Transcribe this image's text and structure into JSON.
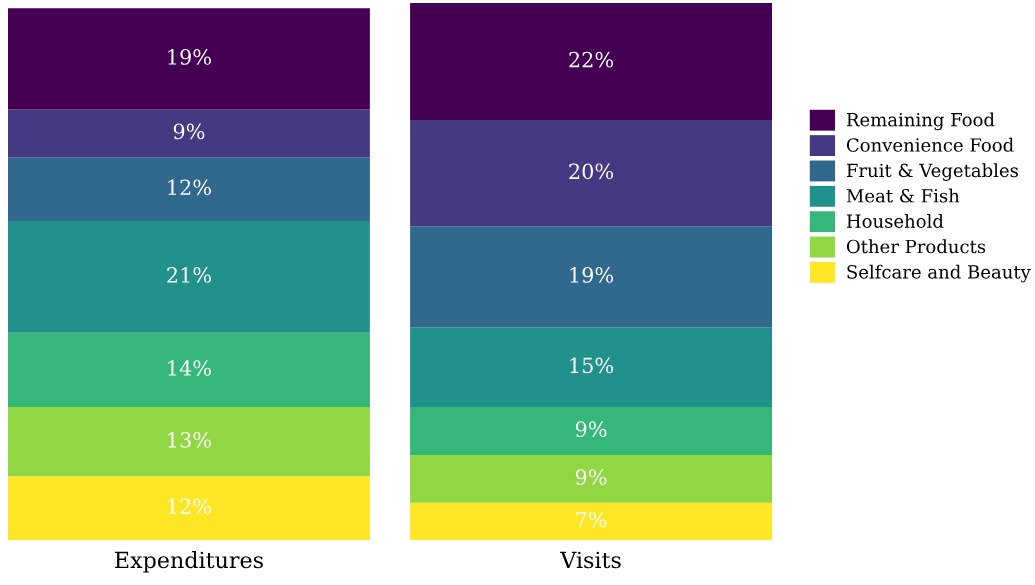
{
  "chart_data": {
    "type": "bar",
    "stacked": true,
    "categories": [
      "Expenditures",
      "Visits"
    ],
    "legend": "right",
    "series": [
      {
        "name": "Selfcare and Beauty",
        "color": "#fde725",
        "values": [
          12,
          7
        ],
        "value_labels": [
          "12%",
          "7%"
        ]
      },
      {
        "name": "Other Products",
        "color": "#90d743",
        "values": [
          13,
          9
        ],
        "value_labels": [
          "13%",
          "9%"
        ]
      },
      {
        "name": "Household",
        "color": "#35b779",
        "values": [
          14,
          9
        ],
        "value_labels": [
          "14%",
          "9%"
        ]
      },
      {
        "name": "Meat & Fish",
        "color": "#21918c",
        "values": [
          21,
          15
        ],
        "value_labels": [
          "21%",
          "15%"
        ]
      },
      {
        "name": "Fruit & Vegetables",
        "color": "#31688e",
        "values": [
          12,
          19
        ],
        "value_labels": [
          "12%",
          "19%"
        ]
      },
      {
        "name": "Convenience Food",
        "color": "#443983",
        "values": [
          9,
          20
        ],
        "value_labels": [
          "9%",
          "20%"
        ]
      },
      {
        "name": "Remaining Food",
        "color": "#440154",
        "values": [
          19,
          22
        ],
        "value_labels": [
          "19%",
          "22%"
        ]
      }
    ]
  }
}
